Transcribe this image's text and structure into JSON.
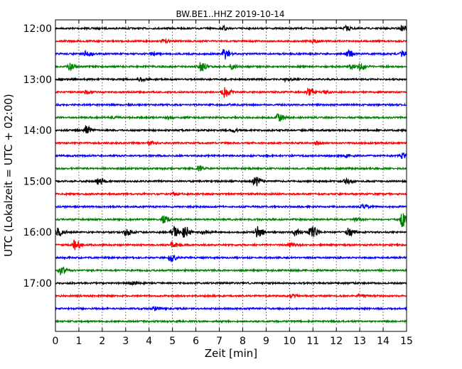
{
  "chart_data": {
    "type": "line",
    "title": "BW.BE1..HHZ 2019-10-14",
    "xlabel": "Zeit  [min]",
    "ylabel": "UTC (Lokalzeit = UTC + 02:00)",
    "xlim": [
      0,
      15
    ],
    "x_ticks": [
      "0",
      "1",
      "2",
      "3",
      "4",
      "5",
      "6",
      "7",
      "8",
      "9",
      "10",
      "11",
      "12",
      "13",
      "14",
      "15"
    ],
    "y_tick_labels": [
      "12:00",
      "13:00",
      "14:00",
      "15:00",
      "16:00",
      "17:00"
    ],
    "trace_start": "12:00",
    "trace_interval_minutes": 15,
    "trace_count": 24,
    "grid_x": "dotted vertical at each minute",
    "trace_colors": [
      "#000000",
      "#ff0000",
      "#0000ff",
      "#008000"
    ],
    "series": [
      {
        "start": "12:00",
        "events": [
          [
            7.2,
            0.4
          ],
          [
            12.4,
            0.5
          ],
          [
            14.8,
            0.6
          ]
        ]
      },
      {
        "start": "12:15",
        "events": [
          [
            4.6,
            0.3
          ],
          [
            11.0,
            0.3
          ]
        ]
      },
      {
        "start": "12:30",
        "events": [
          [
            1.3,
            0.6
          ],
          [
            4.1,
            0.3
          ],
          [
            7.2,
            1.2
          ],
          [
            12.5,
            0.8
          ],
          [
            14.8,
            0.7
          ]
        ]
      },
      {
        "start": "12:45",
        "events": [
          [
            0.6,
            1.0
          ],
          [
            6.2,
            1.1
          ],
          [
            7.5,
            0.5
          ],
          [
            12.6,
            0.5
          ],
          [
            13.0,
            0.8
          ]
        ]
      },
      {
        "start": "13:00",
        "events": [
          [
            3.6,
            0.4
          ],
          [
            9.8,
            0.3
          ]
        ]
      },
      {
        "start": "13:15",
        "events": [
          [
            1.3,
            0.4
          ],
          [
            7.2,
            1.3
          ],
          [
            10.8,
            0.9
          ],
          [
            11.5,
            0.3
          ]
        ]
      },
      {
        "start": "13:30",
        "events": [
          [
            7.5,
            0.2
          ]
        ]
      },
      {
        "start": "13:45",
        "events": [
          [
            2.4,
            0.3
          ],
          [
            4.8,
            0.3
          ],
          [
            9.5,
            0.9
          ]
        ]
      },
      {
        "start": "14:00",
        "events": [
          [
            1.3,
            1.0
          ],
          [
            7.5,
            0.4
          ]
        ]
      },
      {
        "start": "14:15",
        "events": [
          [
            4.0,
            0.5
          ],
          [
            11.1,
            0.3
          ]
        ]
      },
      {
        "start": "14:30",
        "events": [
          [
            12.4,
            0.3
          ],
          [
            14.8,
            0.6
          ]
        ]
      },
      {
        "start": "14:45",
        "events": [
          [
            6.1,
            0.6
          ]
        ]
      },
      {
        "start": "15:00",
        "events": [
          [
            1.8,
            0.9
          ],
          [
            8.5,
            1.2
          ],
          [
            12.4,
            0.6
          ]
        ]
      },
      {
        "start": "15:15",
        "events": [
          [
            5.0,
            0.4
          ]
        ]
      },
      {
        "start": "15:30",
        "events": [
          [
            13.1,
            0.4
          ]
        ]
      },
      {
        "start": "15:45",
        "events": [
          [
            4.6,
            0.9
          ],
          [
            12.8,
            0.4
          ],
          [
            14.8,
            1.6
          ]
        ]
      },
      {
        "start": "16:00",
        "events": [
          [
            0.1,
            0.9
          ],
          [
            3.0,
            0.7
          ],
          [
            5.0,
            1.2
          ],
          [
            5.5,
            1.4
          ],
          [
            6.3,
            0.5
          ],
          [
            8.6,
            1.3
          ],
          [
            10.2,
            0.8
          ],
          [
            10.9,
            1.5
          ],
          [
            12.5,
            0.9
          ]
        ]
      },
      {
        "start": "16:15",
        "events": [
          [
            0.8,
            1.1
          ],
          [
            5.0,
            0.8
          ],
          [
            10.0,
            0.4
          ]
        ]
      },
      {
        "start": "16:30",
        "events": [
          [
            4.9,
            0.9
          ]
        ]
      },
      {
        "start": "16:45",
        "events": [
          [
            0.2,
            1.0
          ]
        ]
      },
      {
        "start": "17:00",
        "events": [
          [
            3.2,
            0.3
          ]
        ]
      },
      {
        "start": "17:15",
        "events": [
          [
            10.0,
            0.4
          ],
          [
            13.0,
            0.3
          ]
        ]
      },
      {
        "start": "17:30",
        "events": [
          [
            4.2,
            0.5
          ]
        ]
      },
      {
        "start": "17:45",
        "events": []
      }
    ]
  }
}
